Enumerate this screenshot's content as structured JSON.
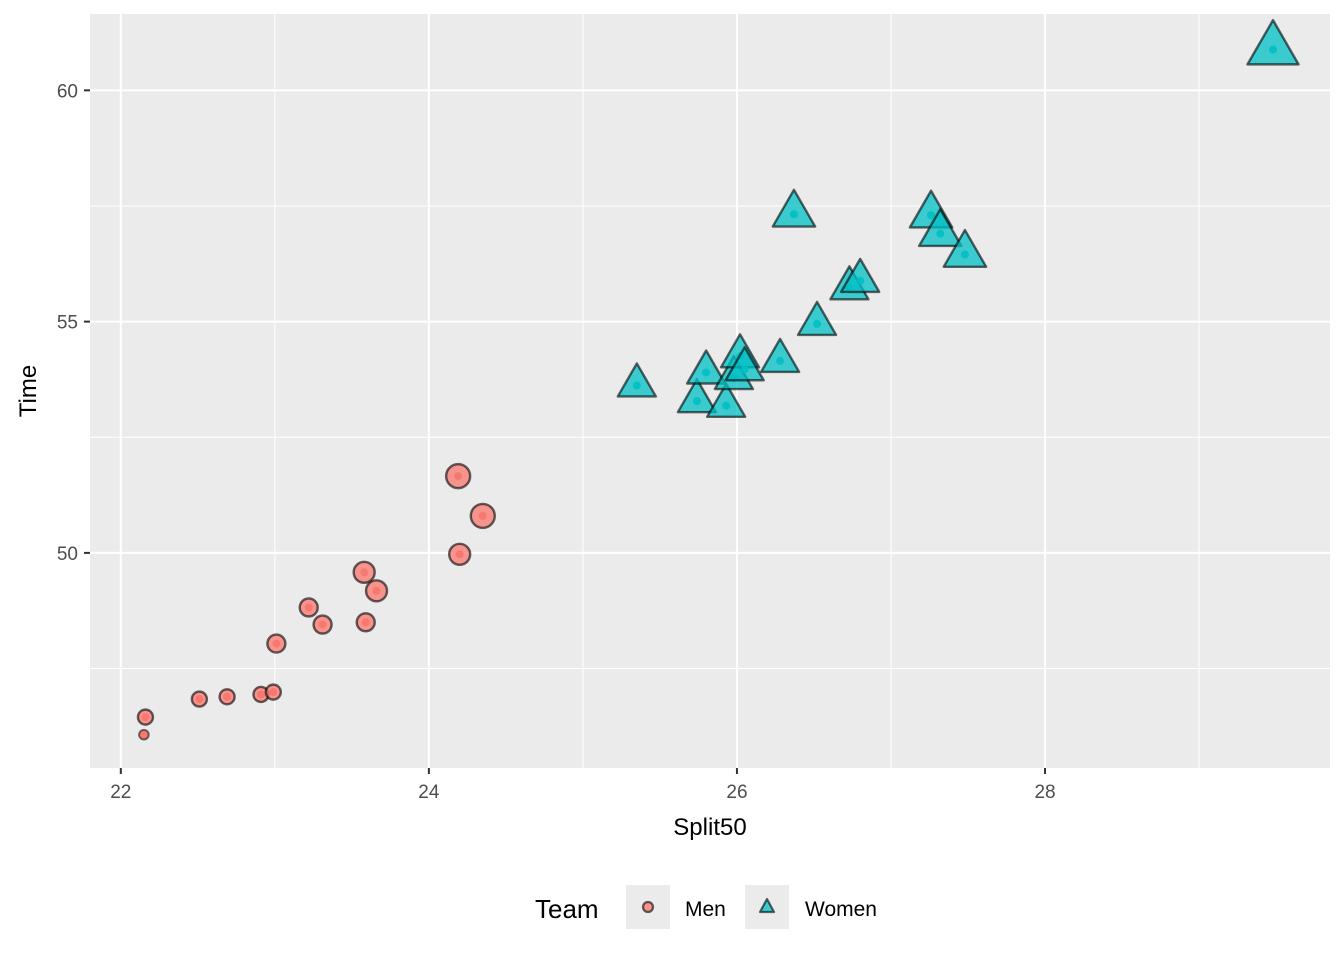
{
  "chart_data": {
    "type": "scatter",
    "xlabel": "Split50",
    "ylabel": "Time",
    "xlim": [
      21.8,
      29.85
    ],
    "ylim": [
      45.35,
      61.65
    ],
    "x_ticks": [
      22,
      24,
      26,
      28
    ],
    "y_ticks": [
      50,
      55,
      60
    ],
    "x_tick_labels": [
      "22",
      "24",
      "26",
      "28"
    ],
    "y_tick_labels": [
      "50",
      "55",
      "60"
    ],
    "grid": true,
    "legend": {
      "title": "Team",
      "position": "bottom",
      "entries": [
        "Men",
        "Women"
      ]
    },
    "series": [
      {
        "name": "Men",
        "shape": "circle",
        "color": "#F8766D",
        "points": [
          {
            "x": 22.15,
            "y": 46.07,
            "size": 1
          },
          {
            "x": 22.16,
            "y": 46.45,
            "size": 3
          },
          {
            "x": 22.51,
            "y": 46.84,
            "size": 3
          },
          {
            "x": 22.69,
            "y": 46.89,
            "size": 3
          },
          {
            "x": 22.91,
            "y": 46.94,
            "size": 3
          },
          {
            "x": 22.99,
            "y": 46.99,
            "size": 3
          },
          {
            "x": 23.01,
            "y": 48.04,
            "size": 4
          },
          {
            "x": 23.22,
            "y": 48.82,
            "size": 4
          },
          {
            "x": 23.31,
            "y": 48.45,
            "size": 4
          },
          {
            "x": 23.58,
            "y": 49.58,
            "size": 5
          },
          {
            "x": 23.59,
            "y": 48.5,
            "size": 4
          },
          {
            "x": 23.66,
            "y": 49.18,
            "size": 5
          },
          {
            "x": 24.19,
            "y": 51.66,
            "size": 6
          },
          {
            "x": 24.2,
            "y": 49.97,
            "size": 5
          },
          {
            "x": 24.35,
            "y": 50.8,
            "size": 6
          }
        ]
      },
      {
        "name": "Women",
        "shape": "triangle",
        "color": "#00BFC4",
        "points": [
          {
            "x": 25.35,
            "y": 53.62,
            "size": 6
          },
          {
            "x": 25.74,
            "y": 53.28,
            "size": 6
          },
          {
            "x": 25.8,
            "y": 53.9,
            "size": 6
          },
          {
            "x": 25.93,
            "y": 53.18,
            "size": 6
          },
          {
            "x": 25.98,
            "y": 53.78,
            "size": 6
          },
          {
            "x": 26.02,
            "y": 54.25,
            "size": 6
          },
          {
            "x": 26.05,
            "y": 53.97,
            "size": 6
          },
          {
            "x": 26.28,
            "y": 54.15,
            "size": 6
          },
          {
            "x": 26.37,
            "y": 57.32,
            "size": 7
          },
          {
            "x": 26.52,
            "y": 54.95,
            "size": 6
          },
          {
            "x": 26.73,
            "y": 55.72,
            "size": 6
          },
          {
            "x": 26.8,
            "y": 55.88,
            "size": 6
          },
          {
            "x": 27.26,
            "y": 57.3,
            "size": 7
          },
          {
            "x": 27.32,
            "y": 56.9,
            "size": 7
          },
          {
            "x": 27.48,
            "y": 56.45,
            "size": 7
          },
          {
            "x": 29.48,
            "y": 60.88,
            "size": 9
          }
        ]
      }
    ]
  }
}
